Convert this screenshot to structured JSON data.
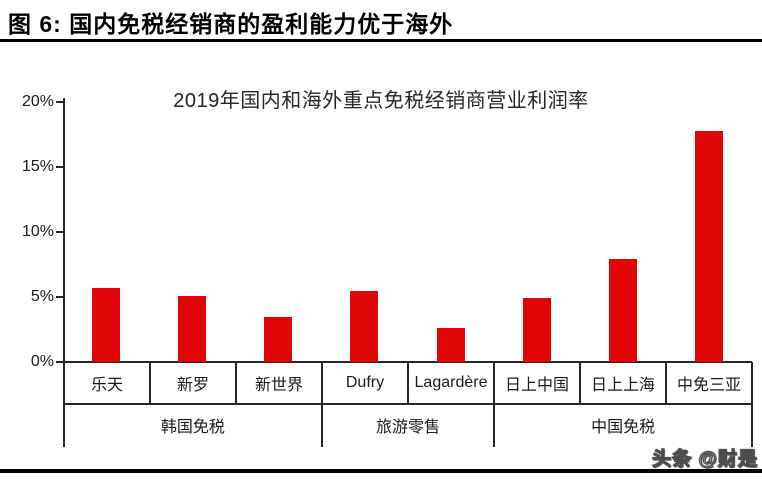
{
  "header": {
    "title": "图 6: 国内免税经销商的盈利能力优于海外"
  },
  "watermark": {
    "text": "头条 @财是"
  },
  "colors": {
    "bar_red": "#e00608",
    "line": "#262626",
    "rule_black": "#000000"
  },
  "chart_data": {
    "type": "bar",
    "title": "2019年国内和海外重点免税经销商营业利润率",
    "categories": [
      "乐天",
      "新罗",
      "新世界",
      "Dufry",
      "Lagardère",
      "日上中国",
      "日上上海",
      "中免三亚"
    ],
    "values": [
      5.7,
      5.1,
      3.5,
      5.5,
      2.6,
      4.9,
      7.9,
      17.8
    ],
    "unit": "%",
    "groups": [
      {
        "label": "韩国免税",
        "span": 3
      },
      {
        "label": "旅游零售",
        "span": 2
      },
      {
        "label": "中国免税",
        "span": 3
      }
    ],
    "xlabel": "",
    "ylabel": "",
    "ylim": [
      0,
      20
    ],
    "yticks": [
      0,
      5,
      10,
      15,
      20
    ],
    "ytick_labels": [
      "0%",
      "5%",
      "10%",
      "15%",
      "20%"
    ],
    "grid": false,
    "legend": null,
    "bar_color": "#e00608"
  }
}
